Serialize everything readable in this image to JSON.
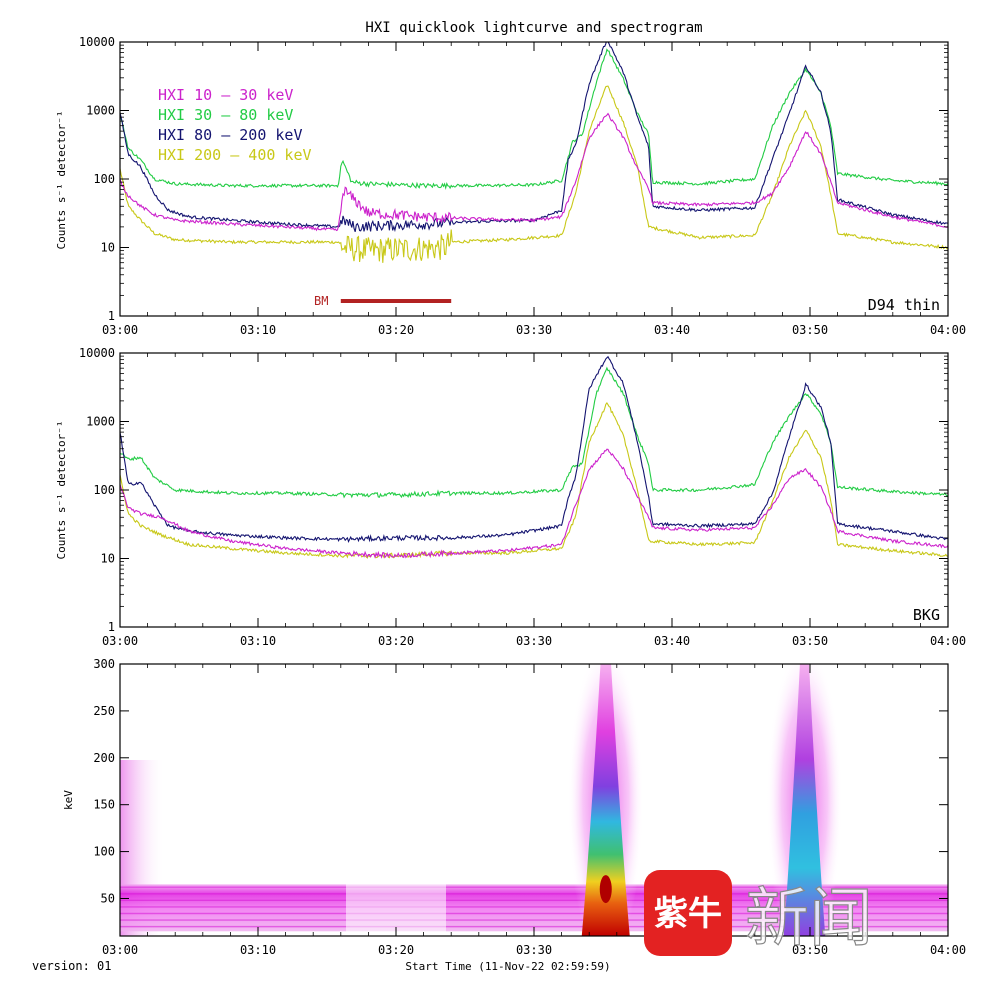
{
  "title": "HXI quicklook lightcurve and spectrogram",
  "footer": {
    "version": "version: 01",
    "start_time": "Start Time (11-Nov-22 02:59:59)"
  },
  "watermark": {
    "logo_text": "紫牛",
    "text": "新闻"
  },
  "colors": {
    "background": "#ffffff",
    "band_10_30": "#cc22cc",
    "band_30_80": "#22cc44",
    "band_80_200": "#141470",
    "band_200_400": "#c8c818",
    "bm_bar": "#b22222",
    "logo_red": "#e32222"
  },
  "chart_data": [
    {
      "type": "line",
      "panel": "lightcurve",
      "ylabel": "Counts s⁻¹ detector⁻¹",
      "yscale": "log",
      "ylim": [
        1,
        10000
      ],
      "xlim_min": [
        0,
        60
      ],
      "x_ticks": [
        "03:00",
        "03:10",
        "03:20",
        "03:30",
        "03:40",
        "03:50",
        "04:00"
      ],
      "y_ticks": [
        "10000",
        "1000",
        "100",
        "10",
        "1"
      ],
      "panel_label": "D94 thin",
      "legend_position": "top-left",
      "annotation": {
        "text": "BM",
        "x_range_min": [
          16,
          24
        ]
      },
      "series": [
        {
          "name": "HXI 10 – 30 keV",
          "color": "#cc22cc",
          "x": [
            0,
            0.5,
            1.5,
            2.5,
            4,
            8,
            12,
            15.8,
            16.2,
            18,
            22,
            26,
            30,
            32,
            33,
            34,
            35.3,
            36.5,
            37.5,
            38.3,
            38.6,
            42,
            46,
            47.2,
            48.5,
            49.7,
            50.8,
            51.5,
            52,
            56,
            60
          ],
          "y": [
            95,
            60,
            40,
            30,
            25,
            22,
            20,
            18,
            70,
            32,
            28,
            26,
            25,
            28,
            90,
            400,
            900,
            400,
            140,
            75,
            45,
            42,
            45,
            60,
            150,
            500,
            230,
            90,
            45,
            28,
            20
          ]
        },
        {
          "name": "HXI 30 – 80 keV",
          "color": "#22cc44",
          "x": [
            0,
            0.6,
            1.5,
            2.5,
            4,
            8,
            12,
            15.8,
            16.1,
            16.8,
            18,
            22,
            26,
            30,
            32,
            32.8,
            33.5,
            34.5,
            35.3,
            36.5,
            37.5,
            38.3,
            38.6,
            42,
            46,
            47.3,
            48.5,
            49.7,
            50.8,
            51.5,
            52,
            56,
            60
          ],
          "y": [
            900,
            280,
            190,
            100,
            85,
            80,
            80,
            80,
            190,
            90,
            85,
            80,
            80,
            82,
            95,
            350,
            450,
            2500,
            8000,
            2800,
            900,
            450,
            90,
            85,
            100,
            600,
            1800,
            4000,
            1800,
            600,
            120,
            95,
            85
          ]
        },
        {
          "name": "HXI 80 – 200 keV",
          "color": "#141470",
          "x": [
            0,
            0.6,
            1.5,
            2.5,
            3.5,
            5,
            8,
            12,
            15.8,
            16.2,
            17,
            22,
            26,
            30,
            32,
            32.5,
            33,
            34,
            35.3,
            36.5,
            37.5,
            38.3,
            38.6,
            42,
            46,
            47.3,
            48.5,
            49.7,
            50.8,
            51.5,
            52,
            56,
            60
          ],
          "y": [
            950,
            230,
            150,
            60,
            35,
            28,
            25,
            22,
            20,
            25,
            20,
            22,
            24,
            25,
            35,
            200,
            300,
            2500,
            11000,
            3500,
            800,
            300,
            40,
            35,
            38,
            200,
            900,
            4500,
            1800,
            500,
            50,
            30,
            22
          ]
        },
        {
          "name": "HXI 200 – 400 keV",
          "color": "#c8c818",
          "x": [
            0,
            0.6,
            1.5,
            2.5,
            4,
            8,
            12,
            15.8,
            16.2,
            18,
            23.5,
            24,
            28,
            32,
            33,
            34,
            35.3,
            36.5,
            37.5,
            38.3,
            42,
            46,
            47.3,
            48.5,
            49.7,
            50.8,
            51.5,
            52,
            56,
            60
          ],
          "y": [
            140,
            40,
            25,
            16,
            13,
            12,
            12,
            12,
            10,
            9,
            10,
            12,
            13,
            15,
            60,
            500,
            2400,
            650,
            150,
            20,
            14,
            15,
            60,
            300,
            1000,
            300,
            60,
            16,
            12,
            10
          ]
        }
      ]
    },
    {
      "type": "line",
      "panel": "background",
      "ylabel": "Counts s⁻¹ detector⁻¹",
      "yscale": "log",
      "ylim": [
        1,
        10000
      ],
      "xlim_min": [
        0,
        60
      ],
      "x_ticks": [
        "03:00",
        "03:10",
        "03:20",
        "03:30",
        "03:40",
        "03:50",
        "04:00"
      ],
      "y_ticks": [
        "10000",
        "1000",
        "100",
        "10",
        "1"
      ],
      "panel_label": "BKG",
      "series": [
        {
          "name": "HXI 10 – 30 keV",
          "color": "#cc22cc",
          "x": [
            0,
            0.6,
            1.5,
            3,
            5,
            8,
            12,
            16,
            20,
            24,
            28,
            32,
            33,
            34,
            35.3,
            36.5,
            37.5,
            38.3,
            38.6,
            42,
            46,
            47.3,
            48.5,
            49.7,
            50.8,
            51.5,
            52,
            56,
            60
          ],
          "y": [
            120,
            55,
            45,
            40,
            25,
            18,
            14,
            12,
            11,
            12,
            13,
            16,
            60,
            200,
            400,
            200,
            80,
            40,
            28,
            26,
            28,
            60,
            150,
            200,
            110,
            50,
            25,
            18,
            15
          ]
        },
        {
          "name": "HXI 30 – 80 keV",
          "color": "#22cc44",
          "x": [
            0,
            0.6,
            1.5,
            2.5,
            4,
            8,
            12,
            16,
            20,
            24,
            28,
            32,
            32.8,
            33.5,
            34.5,
            35.3,
            36.5,
            37.5,
            38.3,
            38.6,
            42,
            46,
            47.3,
            48.5,
            49.7,
            50.8,
            51.5,
            52,
            56,
            60
          ],
          "y": [
            350,
            280,
            300,
            150,
            100,
            90,
            90,
            85,
            85,
            90,
            90,
            100,
            220,
            240,
            2500,
            6000,
            2500,
            600,
            250,
            100,
            100,
            120,
            500,
            1200,
            2600,
            1300,
            500,
            110,
            95,
            85
          ]
        },
        {
          "name": "HXI 80 – 200 keV",
          "color": "#141470",
          "x": [
            0,
            0.6,
            1.5,
            2.5,
            3.5,
            5,
            8,
            12,
            16,
            20,
            24,
            28,
            32,
            32.5,
            33,
            34,
            35.3,
            36.5,
            37.5,
            38.3,
            38.6,
            42,
            46,
            47.3,
            48.5,
            49.7,
            50.8,
            51.5,
            52,
            56,
            60
          ],
          "y": [
            700,
            120,
            130,
            60,
            30,
            25,
            22,
            20,
            19,
            20,
            20,
            22,
            30,
            80,
            150,
            3000,
            9000,
            3500,
            500,
            80,
            32,
            30,
            32,
            90,
            600,
            3500,
            1600,
            500,
            32,
            25,
            19
          ]
        },
        {
          "name": "HXI 200 – 400 keV",
          "color": "#c8c818",
          "x": [
            0,
            0.6,
            1.5,
            3,
            5,
            8,
            12,
            16,
            20,
            24,
            28,
            32,
            33,
            34,
            35.3,
            36.5,
            37.5,
            38.3,
            42,
            46,
            47.3,
            48.5,
            49.7,
            50.8,
            51.5,
            52,
            56,
            60
          ],
          "y": [
            160,
            45,
            30,
            22,
            16,
            14,
            12,
            11,
            11,
            12,
            12,
            14,
            40,
            500,
            1900,
            600,
            100,
            18,
            16,
            17,
            70,
            300,
            750,
            300,
            70,
            16,
            13,
            11
          ]
        }
      ]
    },
    {
      "type": "heatmap",
      "panel": "spectrogram",
      "ylabel": "keV",
      "ylim": [
        10,
        300
      ],
      "xlim_min": [
        0,
        60
      ],
      "x_ticks": [
        "03:00",
        "03:10",
        "03:20",
        "03:30",
        "03:40",
        "03:50",
        "04:00"
      ],
      "y_ticks": [
        "300",
        "250",
        "200",
        "150",
        "100",
        "50"
      ],
      "xlabel": "Start Time (11-Nov-22 02:59:59)",
      "peaks": [
        {
          "time_min": 35.2,
          "max_energy_kev": 300,
          "peak_energy_kev": 60
        },
        {
          "time_min": 49.6,
          "max_energy_kev": 300,
          "peak_energy_kev": 60
        }
      ],
      "background_band_kev": [
        15,
        65
      ],
      "colormap": [
        "#ffffff",
        "#f8c8f0",
        "#e040e0",
        "#8040e0",
        "#30c0e0",
        "#40d060",
        "#f0d020",
        "#e06010",
        "#c00000"
      ]
    }
  ]
}
